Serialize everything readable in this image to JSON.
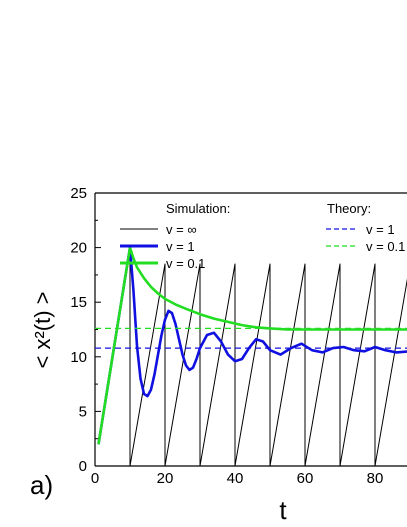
{
  "chart_data": {
    "type": "line",
    "panel_label": "a)",
    "xlabel": "t",
    "ylabel": "< x²(t) >",
    "xlim": [
      0,
      90
    ],
    "ylim": [
      0,
      25
    ],
    "x_ticks": [
      "0",
      "20",
      "40",
      "60",
      "80"
    ],
    "y_ticks": [
      "0",
      "5",
      "10",
      "15",
      "20",
      "25"
    ],
    "legend_simulation_title": "Simulation:",
    "legend_theory_title": "Theory:",
    "series": [
      {
        "name": "v = ∞",
        "group": "simulation",
        "color": "#000000",
        "style": "solid",
        "x": [
          1,
          10,
          10,
          20,
          20,
          30,
          30,
          40,
          40,
          50,
          50,
          60,
          60,
          70,
          70,
          80,
          80,
          90,
          90
        ],
        "y": [
          2,
          20,
          0,
          18.5,
          0,
          18.5,
          0,
          18.5,
          0,
          18.5,
          0,
          18.5,
          0,
          18.5,
          0,
          18.5,
          0,
          18.5,
          0
        ]
      },
      {
        "name": "v = 1",
        "group": "simulation",
        "color": "#1010e0",
        "style": "solid",
        "x": [
          1,
          10,
          11,
          12,
          13,
          14,
          15,
          16,
          17,
          18,
          19,
          20,
          21,
          22,
          23,
          24,
          25,
          26,
          27,
          28,
          29,
          30,
          32,
          34,
          36,
          38,
          40,
          42,
          44,
          46,
          48,
          50,
          53,
          56,
          59,
          62,
          65,
          68,
          71,
          74,
          77,
          80,
          83,
          86,
          90
        ],
        "y": [
          2,
          20,
          16,
          11,
          8,
          6.6,
          6.4,
          7,
          8.4,
          10.2,
          12,
          13.4,
          14.2,
          14,
          13,
          11.6,
          10.2,
          9.2,
          8.8,
          9,
          9.8,
          10.8,
          12,
          12.2,
          11.4,
          10.2,
          9.6,
          9.8,
          10.8,
          11.6,
          11.4,
          10.6,
          10.2,
          10.8,
          11.2,
          10.6,
          10.4,
          10.8,
          10.9,
          10.6,
          10.5,
          10.9,
          10.6,
          10.4,
          10.5
        ]
      },
      {
        "name": "v = 0.1",
        "group": "simulation",
        "color": "#22dd22",
        "style": "solid",
        "x": [
          1,
          10,
          11,
          12,
          14,
          16,
          18,
          20,
          23,
          26,
          30,
          34,
          38,
          42,
          46,
          50,
          55,
          60,
          65,
          70,
          75,
          80,
          85,
          90
        ],
        "y": [
          2,
          20,
          19,
          18.2,
          17.2,
          16.4,
          15.8,
          15.3,
          14.8,
          14.4,
          13.9,
          13.5,
          13.2,
          12.9,
          12.7,
          12.6,
          12.5,
          12.5,
          12.5,
          12.5,
          12.5,
          12.5,
          12.5,
          12.5
        ]
      },
      {
        "name": "v = 1",
        "group": "theory",
        "color": "#1010e0",
        "style": "dashed",
        "x": [
          0,
          90
        ],
        "y": [
          10.8,
          10.8
        ]
      },
      {
        "name": "v = 0.1",
        "group": "theory",
        "color": "#22dd22",
        "style": "dashed",
        "x": [
          0,
          90
        ],
        "y": [
          12.6,
          12.6
        ]
      }
    ]
  }
}
